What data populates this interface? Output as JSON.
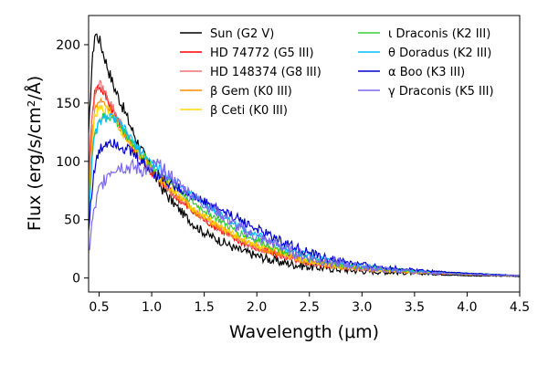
{
  "chart_data": {
    "type": "line",
    "title": "",
    "xlabel": "Wavelength (μm)",
    "ylabel": "Flux (erg/s/cm²/Å)",
    "xlim": [
      0.4,
      4.5
    ],
    "ylim": [
      -12,
      225
    ],
    "xticks": [
      0.5,
      1.0,
      1.5,
      2.0,
      2.5,
      3.0,
      3.5,
      4.0,
      4.5
    ],
    "xtick_labels": [
      "0.5",
      "1.0",
      "1.5",
      "2.0",
      "2.5",
      "3.0",
      "3.5",
      "4.0",
      "4.5"
    ],
    "yticks": [
      0,
      50,
      100,
      150,
      200
    ],
    "ytick_labels": [
      "0",
      "50",
      "100",
      "150",
      "200"
    ],
    "grid": false,
    "legend_position": "top-right",
    "series": [
      {
        "name": "Sun (G2 V)",
        "color": "#000000",
        "noise": 4,
        "x": [
          0.4,
          0.43,
          0.46,
          0.5,
          0.55,
          0.6,
          0.65,
          0.7,
          0.8,
          0.9,
          1.0,
          1.1,
          1.2,
          1.3,
          1.4,
          1.5,
          1.6,
          1.7,
          1.8,
          2.0,
          2.2,
          2.4,
          2.6,
          3.0,
          3.5,
          4.0,
          4.5
        ],
        "values": [
          120,
          180,
          210,
          205,
          190,
          175,
          162,
          152,
          130,
          110,
          92,
          77,
          65,
          55,
          46,
          39,
          34,
          30,
          25,
          19,
          14,
          11,
          9,
          6,
          4,
          2,
          1.5
        ]
      },
      {
        "name": "HD 74772 (G5 III)",
        "color": "#ff0000",
        "noise": 3,
        "x": [
          0.4,
          0.43,
          0.46,
          0.5,
          0.55,
          0.6,
          0.65,
          0.7,
          0.8,
          0.9,
          1.0,
          1.2,
          1.4,
          1.6,
          1.8,
          2.0,
          2.2,
          2.4,
          2.6,
          3.0,
          3.5,
          4.0,
          4.5
        ],
        "values": [
          80,
          140,
          160,
          165,
          158,
          150,
          140,
          130,
          115,
          102,
          90,
          72,
          56,
          44,
          33,
          25,
          20,
          15,
          12,
          8,
          5,
          3,
          2
        ]
      },
      {
        "name": "HD 148374 (G8 III)",
        "color": "#f07070",
        "noise": 3,
        "x": [
          0.4,
          0.43,
          0.46,
          0.5,
          0.55,
          0.6,
          0.65,
          0.7,
          0.8,
          0.9,
          1.0,
          1.2,
          1.4,
          1.6,
          1.8,
          2.0,
          2.2,
          2.4,
          2.6,
          3.0,
          3.5,
          4.0,
          4.5
        ],
        "values": [
          75,
          135,
          158,
          167,
          160,
          152,
          143,
          133,
          117,
          104,
          92,
          73,
          57,
          45,
          34,
          26,
          20,
          15,
          12,
          8,
          5,
          3,
          2
        ]
      },
      {
        "name": "β Gem (K0 III)",
        "color": "#ff8c00",
        "noise": 3,
        "x": [
          0.4,
          0.43,
          0.46,
          0.5,
          0.55,
          0.6,
          0.65,
          0.7,
          0.8,
          0.9,
          1.0,
          1.2,
          1.4,
          1.6,
          1.8,
          2.0,
          2.2,
          2.4,
          2.6,
          3.0,
          3.5,
          4.0,
          4.5
        ],
        "values": [
          60,
          120,
          145,
          152,
          150,
          145,
          138,
          130,
          116,
          104,
          93,
          75,
          58,
          46,
          35,
          27,
          21,
          16,
          12,
          8,
          5,
          3,
          2
        ]
      },
      {
        "name": "β Ceti (K0 III)",
        "color": "#ffd700",
        "noise": 3,
        "x": [
          0.4,
          0.43,
          0.46,
          0.5,
          0.55,
          0.6,
          0.65,
          0.7,
          0.8,
          0.9,
          1.0,
          1.2,
          1.4,
          1.6,
          1.8,
          2.0,
          2.2,
          2.4,
          2.6,
          3.0,
          3.5,
          4.0,
          4.5
        ],
        "values": [
          55,
          110,
          138,
          145,
          145,
          142,
          136,
          128,
          115,
          103,
          93,
          76,
          59,
          47,
          36,
          28,
          22,
          17,
          13,
          8,
          5,
          3,
          2
        ]
      },
      {
        "name": "ι Draconis (K2 III)",
        "color": "#32cd32",
        "noise": 3,
        "x": [
          0.4,
          0.43,
          0.46,
          0.5,
          0.55,
          0.6,
          0.65,
          0.7,
          0.8,
          0.9,
          1.0,
          1.2,
          1.4,
          1.6,
          1.8,
          2.0,
          2.2,
          2.4,
          2.6,
          3.0,
          3.5,
          4.0,
          4.5
        ],
        "values": [
          50,
          100,
          125,
          135,
          138,
          138,
          135,
          130,
          118,
          106,
          96,
          80,
          64,
          52,
          40,
          32,
          25,
          19,
          14,
          9,
          6,
          4,
          2
        ]
      },
      {
        "name": "θ Doradus (K2 III)",
        "color": "#00bfff",
        "noise": 3,
        "x": [
          0.4,
          0.43,
          0.46,
          0.5,
          0.55,
          0.6,
          0.65,
          0.7,
          0.8,
          0.9,
          1.0,
          1.2,
          1.4,
          1.6,
          1.8,
          2.0,
          2.2,
          2.4,
          2.6,
          3.0,
          3.5,
          4.0,
          4.5
        ],
        "values": [
          50,
          100,
          123,
          133,
          137,
          138,
          136,
          132,
          120,
          108,
          99,
          84,
          70,
          58,
          46,
          37,
          29,
          22,
          16,
          10,
          6,
          4,
          2
        ]
      },
      {
        "name": "α Boo (K3 III)",
        "color": "#0000cd",
        "noise": 4,
        "x": [
          0.4,
          0.43,
          0.46,
          0.5,
          0.55,
          0.6,
          0.65,
          0.7,
          0.8,
          0.9,
          1.0,
          1.2,
          1.4,
          1.6,
          1.8,
          2.0,
          2.2,
          2.4,
          2.6,
          3.0,
          3.5,
          4.0,
          4.5
        ],
        "values": [
          40,
          75,
          95,
          108,
          115,
          118,
          117,
          114,
          108,
          100,
          92,
          80,
          70,
          61,
          52,
          42,
          33,
          25,
          18,
          11,
          7,
          4,
          2
        ]
      },
      {
        "name": "γ Draconis (K5 III)",
        "color": "#7b68ee",
        "noise": 5,
        "x": [
          0.4,
          0.43,
          0.46,
          0.5,
          0.55,
          0.6,
          0.65,
          0.7,
          0.8,
          0.9,
          1.0,
          1.05,
          1.2,
          1.4,
          1.55,
          1.6,
          1.7,
          1.8,
          2.0,
          2.2,
          2.4,
          2.6,
          3.0,
          3.5,
          4.0,
          4.5
        ],
        "values": [
          20,
          45,
          60,
          75,
          85,
          92,
          95,
          96,
          95,
          93,
          92,
          97,
          85,
          70,
          60,
          58,
          52,
          44,
          35,
          28,
          20,
          15,
          9,
          5,
          3,
          2
        ]
      }
    ]
  }
}
